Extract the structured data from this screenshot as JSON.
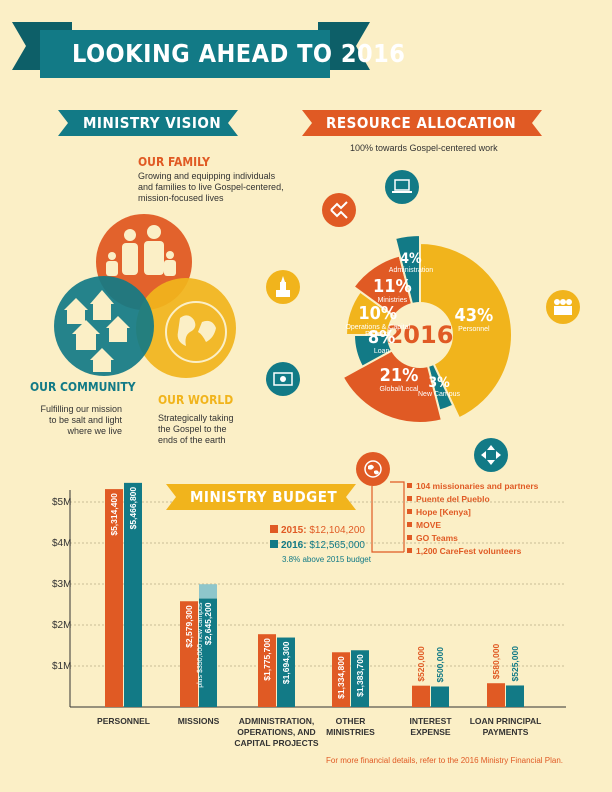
{
  "title": "LOOKING AHEAD TO 2016",
  "ministry_vision": {
    "heading": "MINISTRY VISION",
    "family": {
      "title": "OUR FAMILY",
      "text": [
        "Growing and equipping individuals",
        "and families to live Gospel-centered,",
        "mission-focused lives"
      ]
    },
    "community": {
      "title": "OUR COMMUNITY",
      "text": [
        "Fulfilling our mission",
        "to be salt and light",
        "where we live"
      ]
    },
    "world": {
      "title": "OUR WORLD",
      "text": [
        "Strategically taking",
        "the Gospel to the",
        "ends of the earth"
      ]
    }
  },
  "resource_allocation": {
    "heading": "RESOURCE ALLOCATION",
    "subtitle": "100% towards Gospel-centered work",
    "center": "2016",
    "list": [
      "104 missionaries and partners",
      "Puente del Pueblo",
      "Hope [Kenya]",
      "MOVE",
      "GO Teams",
      "1,200 CareFest volunteers"
    ]
  },
  "ministry_budget": {
    "heading": "MINISTRY BUDGET",
    "legend_2015_label": "2015:",
    "legend_2015_value": "$12,104,200",
    "legend_2016_label": "2016:",
    "legend_2016_value": "$12,565,000",
    "legend_note": "3.8% above 2015 budget",
    "footnote": "For more financial details, refer to the 2016 Ministry Financial Plan."
  },
  "colors": {
    "orange": "#e05a24",
    "teal": "#127a86",
    "yellow": "#f1b41c",
    "background": "#fbefc6",
    "light_teal": "#8ec6cb"
  },
  "icons": [
    "family-icon",
    "community-icon",
    "world-icon",
    "laptop-icon",
    "handshake-icon",
    "church-icon",
    "money-icon",
    "people-icon",
    "directions-icon",
    "globe-icon"
  ],
  "chart_data": [
    {
      "type": "pie",
      "title": "RESOURCE ALLOCATION",
      "slices": [
        {
          "label": "Personnel",
          "value": 43,
          "display": "43%",
          "color": "#f1b41c"
        },
        {
          "label": "New Campus",
          "value": 3,
          "display": "3%",
          "color": "#127a86"
        },
        {
          "label": "Global/Local",
          "value": 21,
          "display": "21%",
          "color": "#e05a24"
        },
        {
          "label": "Loan",
          "value": 8,
          "display": "8%",
          "color": "#127a86"
        },
        {
          "label": "Operations & Capital Projects",
          "value": 10,
          "display": "10%",
          "color": "#f1b41c"
        },
        {
          "label": "Ministries",
          "value": 11,
          "display": "11%",
          "color": "#e05a24"
        },
        {
          "label": "Administration",
          "value": 4,
          "display": "4%",
          "color": "#127a86"
        }
      ]
    },
    {
      "type": "bar",
      "title": "MINISTRY BUDGET",
      "categories": [
        "PERSONNEL",
        "MISSIONS",
        "ADMINISTRATION, OPERATIONS, AND CAPITAL PROJECTS",
        "OTHER MINISTRIES",
        "INTEREST EXPENSE",
        "LOAN PRINCIPAL PAYMENTS"
      ],
      "category_lines": [
        [
          "PERSONNEL"
        ],
        [
          "MISSIONS"
        ],
        [
          "ADMINISTRATION,",
          "OPERATIONS, AND",
          "CAPITAL PROJECTS"
        ],
        [
          "OTHER",
          "MINISTRIES"
        ],
        [
          "INTEREST",
          "EXPENSE"
        ],
        [
          "LOAN PRINCIPAL",
          "PAYMENTS"
        ]
      ],
      "series": [
        {
          "name": "2015",
          "color": "#e05a24",
          "values": [
            5314400,
            2579300,
            1775700,
            1334800,
            520000,
            580000
          ],
          "labels": [
            "$5,314,400",
            "$2,579,300",
            "$1,775,700",
            "$1,334,800",
            "$520,000",
            "$580,000"
          ]
        },
        {
          "name": "2016",
          "color": "#127a86",
          "values": [
            5466800,
            2645200,
            1694300,
            1383700,
            500000,
            525000
          ],
          "labels": [
            "$5,466,800",
            "$2,645,200",
            "$1,694,300",
            "$1,383,700",
            "$500,000",
            "$525,000"
          ]
        }
      ],
      "annotation": {
        "category": "MISSIONS",
        "series": "2016",
        "value": 350000,
        "text": "plus $350,000 new campus",
        "color": "#8ec6cb"
      },
      "yticks": [
        {
          "v": 1000000,
          "t": "$1M"
        },
        {
          "v": 2000000,
          "t": "$2M"
        },
        {
          "v": 3000000,
          "t": "$3M"
        },
        {
          "v": 4000000,
          "t": "$4M"
        },
        {
          "v": 5000000,
          "t": "$5M"
        }
      ],
      "ylim": [
        0,
        5500000
      ],
      "grid": true
    }
  ]
}
